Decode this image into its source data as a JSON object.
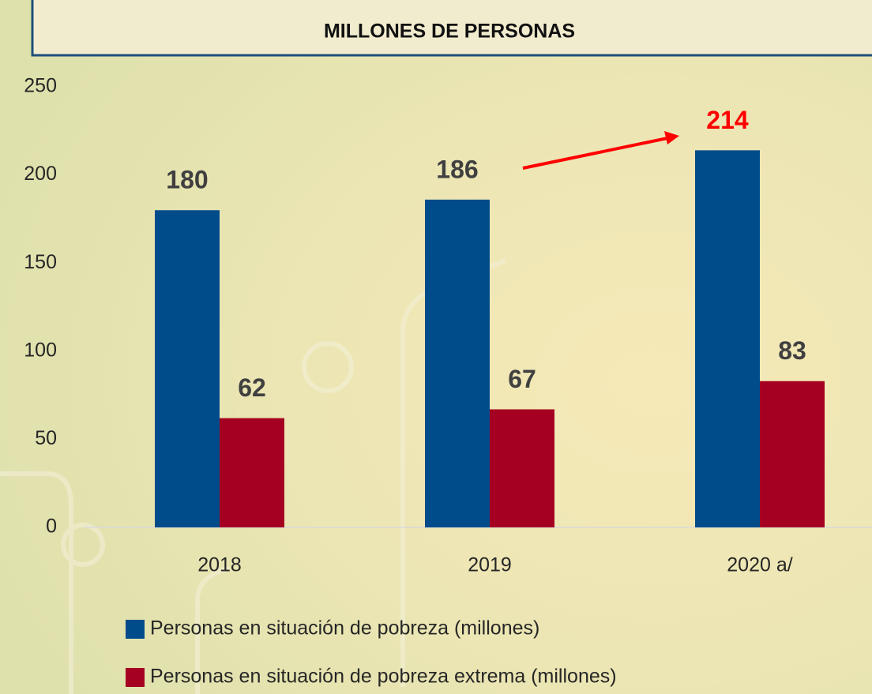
{
  "chart_data": {
    "type": "bar",
    "title": "MILLONES DE PERSONAS",
    "categories": [
      "2018",
      "2019",
      "2020 a/"
    ],
    "series": [
      {
        "name": "Personas en situación de pobreza (millones)",
        "color": "#004c8a",
        "values": [
          180,
          186,
          214
        ],
        "label_colors": [
          "#404040",
          "#404040",
          "#ff0000"
        ]
      },
      {
        "name": "Personas en situación de pobreza extrema (millones)",
        "color": "#a50021",
        "values": [
          62,
          67,
          83
        ],
        "label_colors": [
          "#404040",
          "#404040",
          "#404040"
        ]
      }
    ],
    "ylim": [
      0,
      250
    ],
    "yticks": [
      0,
      50,
      100,
      150,
      200,
      250
    ],
    "grid": false,
    "legend": "bottom"
  }
}
